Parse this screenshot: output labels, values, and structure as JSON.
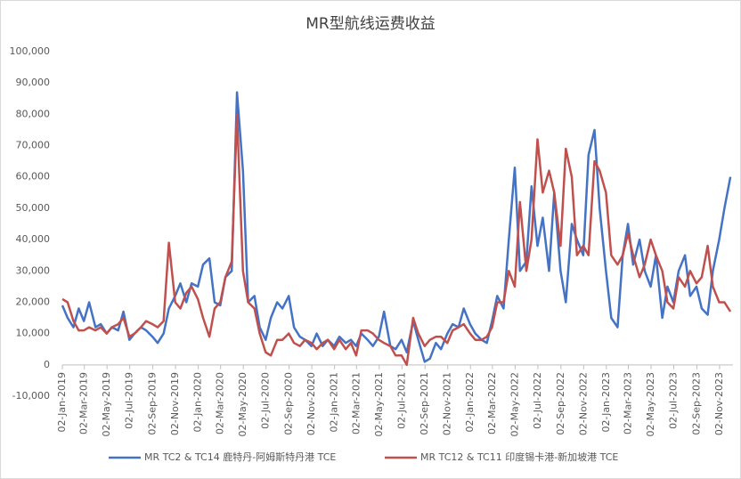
{
  "chart_data": {
    "type": "line",
    "title": "MR型航线运费收益",
    "x": [
      "2019-01-02",
      "2019-01-16",
      "2019-02-01",
      "2019-02-15",
      "2019-03-01",
      "2019-03-15",
      "2019-04-01",
      "2019-04-15",
      "2019-05-01",
      "2019-05-15",
      "2019-06-01",
      "2019-06-15",
      "2019-07-01",
      "2019-07-15",
      "2019-08-01",
      "2019-08-15",
      "2019-09-01",
      "2019-09-15",
      "2019-10-01",
      "2019-10-15",
      "2019-11-01",
      "2019-11-15",
      "2019-12-01",
      "2019-12-15",
      "2020-01-01",
      "2020-01-15",
      "2020-02-01",
      "2020-02-15",
      "2020-03-01",
      "2020-03-15",
      "2020-04-01",
      "2020-04-15",
      "2020-05-01",
      "2020-05-15",
      "2020-06-01",
      "2020-06-15",
      "2020-07-01",
      "2020-07-15",
      "2020-08-01",
      "2020-08-15",
      "2020-09-01",
      "2020-09-15",
      "2020-10-01",
      "2020-10-15",
      "2020-11-01",
      "2020-11-15",
      "2020-12-01",
      "2020-12-15",
      "2021-01-01",
      "2021-01-15",
      "2021-02-01",
      "2021-02-15",
      "2021-03-01",
      "2021-03-15",
      "2021-04-01",
      "2021-04-15",
      "2021-05-01",
      "2021-05-15",
      "2021-06-01",
      "2021-06-15",
      "2021-07-01",
      "2021-07-15",
      "2021-08-01",
      "2021-08-15",
      "2021-09-01",
      "2021-09-15",
      "2021-10-01",
      "2021-10-15",
      "2021-11-01",
      "2021-11-15",
      "2021-12-01",
      "2021-12-15",
      "2022-01-01",
      "2022-01-15",
      "2022-02-01",
      "2022-02-15",
      "2022-03-01",
      "2022-03-15",
      "2022-04-01",
      "2022-04-15",
      "2022-05-01",
      "2022-05-15",
      "2022-06-01",
      "2022-06-15",
      "2022-07-01",
      "2022-07-15",
      "2022-08-01",
      "2022-08-15",
      "2022-09-01",
      "2022-09-15",
      "2022-10-01",
      "2022-10-15",
      "2022-11-01",
      "2022-11-15",
      "2022-12-01",
      "2022-12-15",
      "2023-01-01",
      "2023-01-15",
      "2023-02-01",
      "2023-02-15",
      "2023-03-01",
      "2023-03-15",
      "2023-04-01",
      "2023-04-15",
      "2023-05-01",
      "2023-05-15",
      "2023-06-01",
      "2023-06-15",
      "2023-07-01",
      "2023-07-15",
      "2023-08-01",
      "2023-08-15",
      "2023-09-01",
      "2023-09-15",
      "2023-10-01",
      "2023-10-15",
      "2023-11-01",
      "2023-11-15",
      "2023-12-01"
    ],
    "series": [
      {
        "name": "MR TC2 & TC14 鹿特丹-阿姆斯特丹港 TCE",
        "color": "#4472c4",
        "values": [
          19000,
          15000,
          12000,
          18000,
          14000,
          20000,
          12000,
          13000,
          10000,
          12000,
          11000,
          17000,
          8000,
          10000,
          12000,
          11000,
          9000,
          7000,
          10000,
          18000,
          22000,
          26000,
          20000,
          26000,
          25000,
          32000,
          34000,
          20000,
          19000,
          28000,
          30000,
          87000,
          62000,
          20000,
          22000,
          12000,
          8000,
          15000,
          20000,
          18000,
          22000,
          12000,
          9000,
          8000,
          6000,
          10000,
          6000,
          8000,
          6000,
          9000,
          7000,
          8000,
          6000,
          10000,
          8000,
          6000,
          9000,
          17000,
          6000,
          5000,
          8000,
          4000,
          14000,
          8000,
          1000,
          2000,
          7000,
          5000,
          10000,
          13000,
          12000,
          18000,
          13000,
          10000,
          8000,
          7000,
          14000,
          22000,
          18000,
          40000,
          63000,
          30000,
          33000,
          57000,
          38000,
          47000,
          30000,
          55000,
          30000,
          20000,
          45000,
          40000,
          35000,
          67000,
          75000,
          50000,
          30000,
          15000,
          12000,
          35000,
          45000,
          32000,
          40000,
          30000,
          25000,
          35000,
          15000,
          25000,
          20000,
          30000,
          35000,
          22000,
          25000,
          18000,
          16000,
          30000,
          40000,
          50000,
          60000
        ]
      },
      {
        "name": "MR TC12 & TC11 印度锡卡港-新加坡港 TCE",
        "color": "#c0504d",
        "values": [
          21000,
          20000,
          14000,
          11000,
          11000,
          12000,
          11000,
          12000,
          10000,
          12000,
          13000,
          15000,
          9000,
          10000,
          12000,
          14000,
          13000,
          12000,
          14000,
          39000,
          20000,
          18000,
          23000,
          25000,
          21000,
          15000,
          9000,
          18000,
          20000,
          28000,
          33000,
          80000,
          30000,
          20000,
          18000,
          10000,
          4000,
          3000,
          8000,
          8000,
          10000,
          7000,
          6000,
          8000,
          7000,
          5000,
          7000,
          8000,
          5000,
          8000,
          5000,
          7000,
          3000,
          11000,
          11000,
          10000,
          8000,
          7000,
          6000,
          3000,
          3000,
          0,
          15000,
          10000,
          6000,
          8000,
          9000,
          9000,
          7000,
          11000,
          12000,
          13000,
          10000,
          8000,
          8000,
          9000,
          12000,
          20000,
          20000,
          30000,
          25000,
          52000,
          30000,
          40000,
          72000,
          55000,
          62000,
          55000,
          38000,
          69000,
          60000,
          35000,
          38000,
          35000,
          65000,
          62000,
          55000,
          35000,
          32000,
          35000,
          42000,
          35000,
          28000,
          32000,
          40000,
          35000,
          30000,
          20000,
          18000,
          28000,
          25000,
          30000,
          26000,
          28000,
          38000,
          25000,
          20000,
          20000,
          17000
        ]
      }
    ],
    "xlim": [
      "2019-01-02",
      "2023-12-08"
    ],
    "xticks": [
      {
        "value": "2019-01-02",
        "label": "02-Jan-2019"
      },
      {
        "value": "2019-03-02",
        "label": "02-Mar-2019"
      },
      {
        "value": "2019-05-02",
        "label": "02-May-2019"
      },
      {
        "value": "2019-07-02",
        "label": "02-Jul-2019"
      },
      {
        "value": "2019-09-02",
        "label": "02-Sep-2019"
      },
      {
        "value": "2019-11-02",
        "label": "02-Nov-2019"
      },
      {
        "value": "2020-01-02",
        "label": "02-Jan-2020"
      },
      {
        "value": "2020-03-02",
        "label": "02-Mar-2020"
      },
      {
        "value": "2020-05-02",
        "label": "02-May-2020"
      },
      {
        "value": "2020-07-02",
        "label": "02-Jul-2020"
      },
      {
        "value": "2020-09-02",
        "label": "02-Sep-2020"
      },
      {
        "value": "2020-11-02",
        "label": "02-Nov-2020"
      },
      {
        "value": "2021-01-02",
        "label": "02-Jan-2021"
      },
      {
        "value": "2021-03-02",
        "label": "02-Mar-2021"
      },
      {
        "value": "2021-05-02",
        "label": "02-May-2021"
      },
      {
        "value": "2021-07-02",
        "label": "02-Jul-2021"
      },
      {
        "value": "2021-09-02",
        "label": "02-Sep-2021"
      },
      {
        "value": "2021-11-02",
        "label": "02-Nov-2021"
      },
      {
        "value": "2022-01-02",
        "label": "02-Jan-2022"
      },
      {
        "value": "2022-03-02",
        "label": "02-Mar-2022"
      },
      {
        "value": "2022-05-02",
        "label": "02-May-2022"
      },
      {
        "value": "2022-07-02",
        "label": "02-Jul-2022"
      },
      {
        "value": "2022-09-02",
        "label": "02-Sep-2022"
      },
      {
        "value": "2022-11-02",
        "label": "02-Nov-2022"
      },
      {
        "value": "2023-01-02",
        "label": "02-Jan-2023"
      },
      {
        "value": "2023-03-02",
        "label": "02-Mar-2023"
      },
      {
        "value": "2023-05-02",
        "label": "02-May-2023"
      },
      {
        "value": "2023-07-02",
        "label": "02-Jul-2023"
      },
      {
        "value": "2023-09-02",
        "label": "02-Sep-2023"
      },
      {
        "value": "2023-11-02",
        "label": "02-Nov-2023"
      }
    ],
    "ylim": [
      -10000,
      100000
    ],
    "yticks": [
      {
        "value": -10000,
        "label": "-10,000"
      },
      0,
      {
        "value": 10000,
        "label": "10,000"
      },
      {
        "value": 20000,
        "label": "20,000"
      },
      {
        "value": 30000,
        "label": "30,000"
      },
      {
        "value": 40000,
        "label": "40,000"
      },
      {
        "value": 50000,
        "label": "50,000"
      },
      {
        "value": 60000,
        "label": "60,000"
      },
      {
        "value": 70000,
        "label": "70,000"
      },
      {
        "value": 80000,
        "label": "80,000"
      },
      {
        "value": 90000,
        "label": "90,000"
      },
      {
        "value": 100000,
        "label": "100,000"
      }
    ],
    "grid": false,
    "legend": "bottom"
  }
}
